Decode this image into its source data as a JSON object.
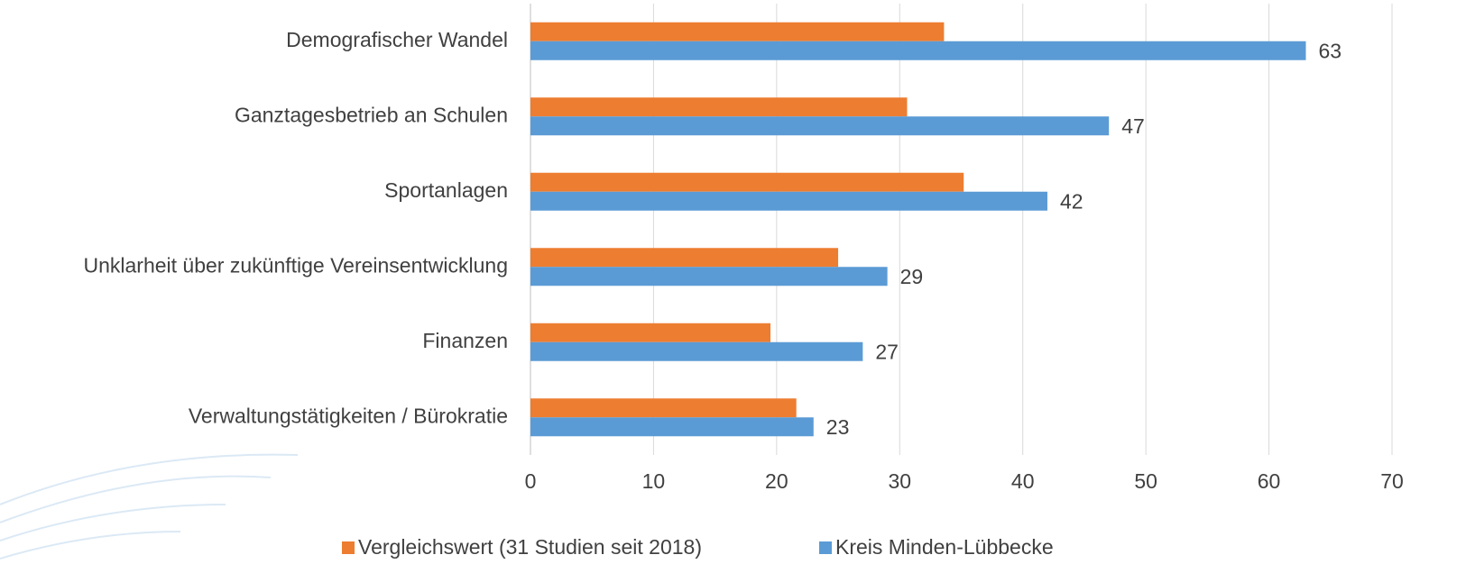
{
  "chart_data": {
    "type": "hbar",
    "categories": [
      "Demografischer Wandel",
      "Ganztagesbetrieb an Schulen",
      "Sportanlagen",
      "Unklarheit über zukünftige Vereinsentwicklung",
      "Finanzen",
      "Verwaltungstätigkeiten / Bürokratie"
    ],
    "series": [
      {
        "name": "Vergleichswert (31 Studien seit 2018)",
        "color": "#ed7d31",
        "values": [
          33.6,
          30.6,
          35.2,
          25.0,
          19.5,
          21.6
        ]
      },
      {
        "name": "Kreis Minden-Lübbecke",
        "color": "#5b9bd5",
        "values": [
          63,
          47,
          42,
          29,
          27,
          23
        ],
        "labels": true
      }
    ],
    "xlim": [
      0,
      70
    ],
    "xticks": [
      0,
      10,
      20,
      30,
      40,
      50,
      60,
      70
    ],
    "grid": true,
    "legend": "bottom"
  }
}
